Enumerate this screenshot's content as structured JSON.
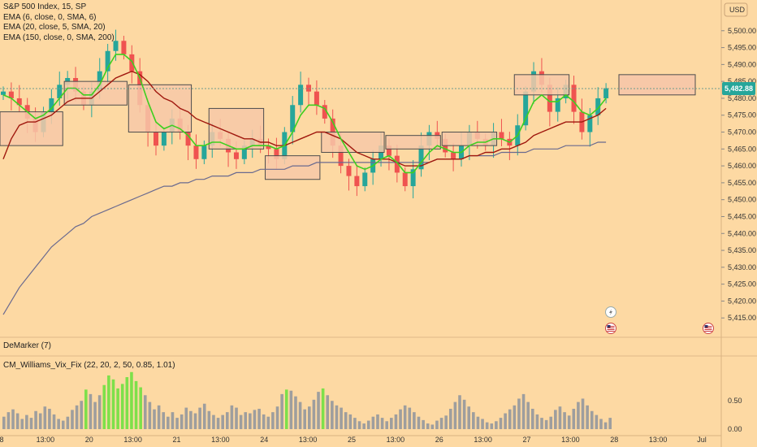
{
  "header": {
    "title": "S&P 500 Index, 15, SP",
    "studies": [
      "EMA (6, close, 0, SMA, 6)",
      "EMA (20, close, 5, SMA, 20)",
      "EMA (150, close, 0, SMA, 200)"
    ]
  },
  "currency_label": "USD",
  "current_price": "5,482.88",
  "panels": {
    "demarker": "DeMarker (7)",
    "vixfix": "CM_Williams_Vix_Fix (22, 20, 2, 50, 0.85, 1.01)"
  },
  "colors": {
    "background": "#fdd9a3",
    "up_candle": "#26a69a",
    "down_candle": "#ef5350",
    "ema_fast": "#3ecf1f",
    "ema_mid": "#a0180e",
    "ema_slow": "#6a6a8f",
    "vix_normal": "#9e9e9e",
    "vix_high": "#7ee04a",
    "zone_fill": "#f7c8a8",
    "zone_border": "#4d4d4d",
    "price_badge": "#26a69a"
  },
  "icons": [
    "lightning-icon",
    "us-flag-icon",
    "us-flag-icon"
  ],
  "chart_data": [
    {
      "type": "candlestick",
      "title": "S&P 500 Index, 15, SP",
      "y_axis": {
        "ticks": [
          "5,500.00",
          "5,495.00",
          "5,490.00",
          "5,485.00",
          "5,480.00",
          "5,475.00",
          "5,470.00",
          "5,465.00",
          "5,460.00",
          "5,455.00",
          "5,450.00",
          "5,445.00",
          "5,440.00",
          "5,435.00",
          "5,430.00",
          "5,425.00",
          "5,420.00",
          "5,415.00"
        ],
        "range": [
          5410,
          5505
        ]
      },
      "x_axis": {
        "ticks": [
          "8",
          "13:00",
          "20",
          "13:00",
          "21",
          "13:00",
          "24",
          "13:00",
          "25",
          "13:00",
          "26",
          "13:00",
          "27",
          "13:00",
          "28",
          "13:00",
          "Jul"
        ]
      },
      "close_path": [
        5482,
        5480,
        5478,
        5474,
        5470,
        5476,
        5480,
        5484,
        5486,
        5482,
        5478,
        5482,
        5488,
        5494,
        5497,
        5493,
        5488,
        5478,
        5470,
        5466,
        5470,
        5474,
        5470,
        5466,
        5462,
        5466,
        5470,
        5468,
        5464,
        5462,
        5466,
        5468,
        5466,
        5465,
        5462,
        5470,
        5478,
        5484,
        5482,
        5478,
        5474,
        5466,
        5460,
        5457,
        5454,
        5458,
        5462,
        5466,
        5463,
        5458,
        5454,
        5459,
        5466,
        5470,
        5468,
        5464,
        5462,
        5466,
        5470,
        5468,
        5466,
        5470,
        5468,
        5466,
        5472,
        5482,
        5488,
        5484,
        5476,
        5480,
        5484,
        5476,
        5470,
        5475,
        5480,
        5483
      ],
      "ema_fast_path": [
        5481,
        5480,
        5478,
        5476,
        5474,
        5475,
        5477,
        5480,
        5483,
        5483,
        5481,
        5481,
        5484,
        5489,
        5493,
        5493,
        5491,
        5486,
        5479,
        5473,
        5471,
        5472,
        5471,
        5469,
        5466,
        5466,
        5467,
        5467,
        5466,
        5465,
        5465,
        5466,
        5466,
        5466,
        5465,
        5466,
        5470,
        5475,
        5478,
        5478,
        5477,
        5473,
        5468,
        5464,
        5460,
        5459,
        5460,
        5462,
        5463,
        5461,
        5458,
        5458,
        5461,
        5464,
        5466,
        5465,
        5464,
        5464,
        5466,
        5467,
        5467,
        5468,
        5468,
        5467,
        5469,
        5474,
        5479,
        5481,
        5479,
        5479,
        5481,
        5479,
        5476,
        5475,
        5477,
        5480
      ],
      "ema_mid_path": [
        5462,
        5468,
        5472,
        5473,
        5473,
        5474,
        5475,
        5477,
        5479,
        5480,
        5480,
        5480,
        5482,
        5484,
        5486,
        5487,
        5488,
        5487,
        5485,
        5482,
        5480,
        5479,
        5477,
        5476,
        5474,
        5473,
        5472,
        5471,
        5470,
        5469,
        5468,
        5468,
        5467,
        5467,
        5466,
        5466,
        5467,
        5468,
        5469,
        5470,
        5470,
        5469,
        5468,
        5466,
        5464,
        5463,
        5462,
        5462,
        5462,
        5461,
        5460,
        5460,
        5460,
        5461,
        5462,
        5462,
        5462,
        5462,
        5463,
        5463,
        5464,
        5464,
        5465,
        5465,
        5466,
        5467,
        5469,
        5470,
        5471,
        5472,
        5473,
        5473,
        5473,
        5474,
        5475,
        5477
      ],
      "ema_slow_path": [
        5416,
        5420,
        5424,
        5427,
        5430,
        5433,
        5436,
        5438,
        5440,
        5442,
        5443,
        5445,
        5446,
        5447,
        5448,
        5449,
        5450,
        5451,
        5452,
        5453,
        5454,
        5454,
        5455,
        5455,
        5456,
        5456,
        5457,
        5457,
        5457,
        5458,
        5458,
        5458,
        5459,
        5459,
        5459,
        5459,
        5460,
        5460,
        5460,
        5461,
        5461,
        5461,
        5461,
        5461,
        5461,
        5461,
        5461,
        5461,
        5461,
        5461,
        5461,
        5461,
        5461,
        5461,
        5462,
        5462,
        5462,
        5462,
        5463,
        5463,
        5463,
        5463,
        5464,
        5464,
        5464,
        5464,
        5465,
        5465,
        5465,
        5465,
        5466,
        5466,
        5466,
        5466,
        5467,
        5467
      ],
      "zones": [
        {
          "from": 0,
          "to": 7,
          "y_low": 5466,
          "y_high": 5476
        },
        {
          "from": 8,
          "to": 15,
          "y_low": 5478,
          "y_high": 5485
        },
        {
          "from": 16,
          "to": 23,
          "y_low": 5470,
          "y_high": 5484
        },
        {
          "from": 26,
          "to": 32,
          "y_low": 5465,
          "y_high": 5477
        },
        {
          "from": 33,
          "to": 39,
          "y_low": 5456,
          "y_high": 5463
        },
        {
          "from": 40,
          "to": 47,
          "y_low": 5464,
          "y_high": 5470
        },
        {
          "from": 48,
          "to": 54,
          "y_low": 5465,
          "y_high": 5469
        },
        {
          "from": 55,
          "to": 61,
          "y_low": 5466,
          "y_high": 5470
        },
        {
          "from": 64,
          "to": 70,
          "y_low": 5481,
          "y_high": 5487
        }
      ]
    },
    {
      "type": "bar",
      "title": "CM_Williams_Vix_Fix (22, 20, 2, 50, 0.85, 1.01)",
      "y_axis": {
        "ticks": [
          "0.50",
          "0.00"
        ],
        "range": [
          0,
          1.05
        ]
      },
      "values": [
        0.22,
        0.3,
        0.35,
        0.28,
        0.18,
        0.25,
        0.2,
        0.32,
        0.28,
        0.4,
        0.36,
        0.26,
        0.18,
        0.15,
        0.22,
        0.34,
        0.42,
        0.5,
        0.7,
        0.62,
        0.48,
        0.6,
        0.78,
        0.95,
        0.88,
        0.72,
        0.8,
        0.92,
        1.01,
        0.85,
        0.74,
        0.6,
        0.48,
        0.35,
        0.42,
        0.3,
        0.22,
        0.3,
        0.2,
        0.26,
        0.38,
        0.32,
        0.28,
        0.38,
        0.45,
        0.32,
        0.25,
        0.2,
        0.25,
        0.3,
        0.42,
        0.38,
        0.25,
        0.3,
        0.28,
        0.34,
        0.36,
        0.26,
        0.22,
        0.3,
        0.4,
        0.62,
        0.7,
        0.68,
        0.58,
        0.48,
        0.35,
        0.4,
        0.52,
        0.66,
        0.72,
        0.6,
        0.5,
        0.42,
        0.38,
        0.3,
        0.26,
        0.2,
        0.14,
        0.1,
        0.15,
        0.22,
        0.26,
        0.2,
        0.14,
        0.2,
        0.26,
        0.35,
        0.42,
        0.38,
        0.3,
        0.22,
        0.16,
        0.1,
        0.08,
        0.15,
        0.2,
        0.24,
        0.36,
        0.48,
        0.6,
        0.52,
        0.4,
        0.3,
        0.22,
        0.18,
        0.12,
        0.1,
        0.14,
        0.2,
        0.28,
        0.35,
        0.42,
        0.54,
        0.62,
        0.48,
        0.36,
        0.26,
        0.2,
        0.16,
        0.22,
        0.34,
        0.4,
        0.3,
        0.24,
        0.36,
        0.48,
        0.54,
        0.42,
        0.32,
        0.25,
        0.18,
        0.12,
        0.2
      ],
      "high_threshold": 0.7
    }
  ]
}
